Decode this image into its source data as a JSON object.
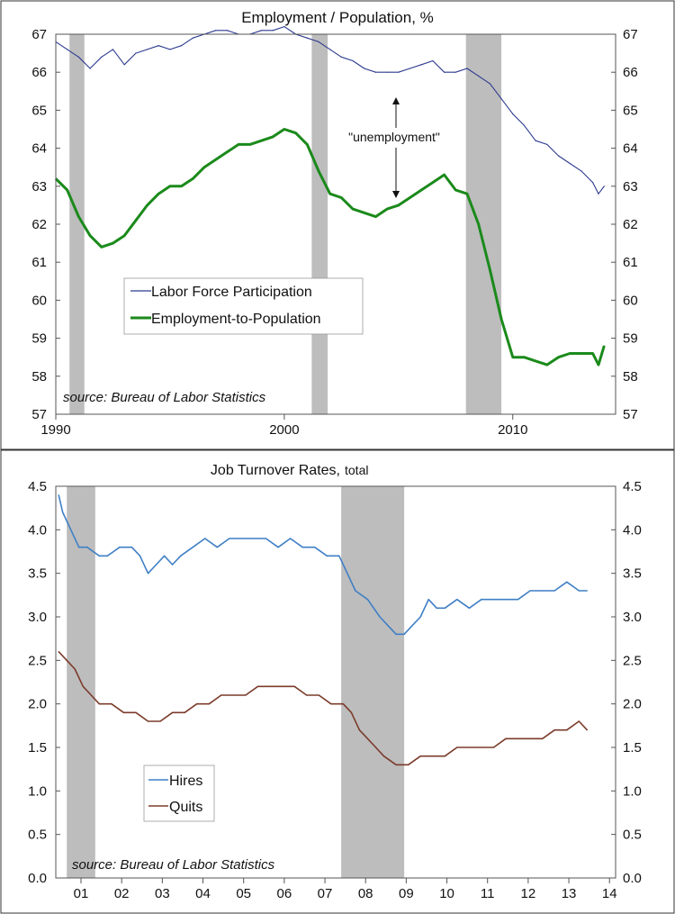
{
  "chart_data": [
    {
      "type": "line",
      "title": "Employment / Population, %",
      "source": "source: Bureau of Labor Statistics",
      "annotation": "\"unemployment\"",
      "ylim": [
        57,
        67
      ],
      "y_ticks": [
        57,
        58,
        59,
        60,
        61,
        62,
        63,
        64,
        65,
        66,
        67
      ],
      "xlim": [
        1990,
        2014.5
      ],
      "x_ticks": [
        {
          "value": 1990,
          "label": "1990"
        },
        {
          "value": 2000,
          "label": "2000"
        },
        {
          "value": 2010,
          "label": "2010"
        }
      ],
      "recessions": [
        [
          1990.6,
          1991.25
        ],
        [
          2001.2,
          2001.9
        ],
        [
          2007.95,
          2009.5
        ]
      ],
      "grid": false,
      "legend_position": "center-left",
      "series": [
        {
          "name": "Labor Force Participation",
          "color": "#2b3a8f",
          "x": [
            1990,
            1990.5,
            1991,
            1991.5,
            1992,
            1992.5,
            1993,
            1993.5,
            1994,
            1994.5,
            1995,
            1995.5,
            1996,
            1996.5,
            1997,
            1997.5,
            1998,
            1998.5,
            1999,
            1999.5,
            2000,
            2000.5,
            2001,
            2001.5,
            2002,
            2002.5,
            2003,
            2003.5,
            2004,
            2004.5,
            2005,
            2005.5,
            2006,
            2006.5,
            2007,
            2007.5,
            2008,
            2008.5,
            2009,
            2009.5,
            2010,
            2010.5,
            2011,
            2011.5,
            2012,
            2012.5,
            2013,
            2013.5,
            2013.75,
            2014.0
          ],
          "y": [
            66.8,
            66.6,
            66.4,
            66.1,
            66.4,
            66.6,
            66.2,
            66.5,
            66.6,
            66.7,
            66.6,
            66.7,
            66.9,
            67.0,
            67.1,
            67.1,
            67.0,
            67.0,
            67.1,
            67.1,
            67.2,
            67.0,
            66.9,
            66.8,
            66.6,
            66.4,
            66.3,
            66.1,
            66.0,
            66.0,
            66.0,
            66.1,
            66.2,
            66.3,
            66.0,
            66.0,
            66.1,
            65.9,
            65.7,
            65.3,
            64.9,
            64.6,
            64.2,
            64.1,
            63.8,
            63.6,
            63.4,
            63.1,
            62.8,
            63.0
          ]
        },
        {
          "name": "Employment-to-Population",
          "color": "#1b8a1b",
          "x": [
            1990,
            1990.5,
            1991,
            1991.5,
            1992,
            1992.5,
            1993,
            1993.5,
            1994,
            1994.5,
            1995,
            1995.5,
            1996,
            1996.5,
            1997,
            1997.5,
            1998,
            1998.5,
            1999,
            1999.5,
            2000,
            2000.5,
            2001,
            2001.5,
            2002,
            2002.5,
            2003,
            2003.5,
            2004,
            2004.5,
            2005,
            2005.5,
            2006,
            2006.5,
            2007,
            2007.5,
            2008,
            2008.5,
            2009,
            2009.5,
            2010,
            2010.5,
            2011,
            2011.5,
            2012,
            2012.5,
            2013,
            2013.5,
            2013.75,
            2014.0
          ],
          "y": [
            63.2,
            62.9,
            62.2,
            61.7,
            61.4,
            61.5,
            61.7,
            62.1,
            62.5,
            62.8,
            63.0,
            63.0,
            63.2,
            63.5,
            63.7,
            63.9,
            64.1,
            64.1,
            64.2,
            64.3,
            64.5,
            64.4,
            64.1,
            63.4,
            62.8,
            62.7,
            62.4,
            62.3,
            62.2,
            62.4,
            62.5,
            62.7,
            62.9,
            63.1,
            63.3,
            62.9,
            62.8,
            62.0,
            60.8,
            59.5,
            58.5,
            58.5,
            58.4,
            58.3,
            58.5,
            58.6,
            58.6,
            58.6,
            58.3,
            58.8
          ]
        }
      ]
    },
    {
      "type": "line",
      "title": "Job Turnover Rates,",
      "title_suffix": "total",
      "source": "source: Bureau of Labor Statistics",
      "ylim": [
        0,
        4.5
      ],
      "y_ticks": [
        {
          "value": 0,
          "label": "0.0"
        },
        {
          "value": 0.5,
          "label": "0.5"
        },
        {
          "value": 1,
          "label": "1.0"
        },
        {
          "value": 1.5,
          "label": "1.5"
        },
        {
          "value": 2,
          "label": "2.0"
        },
        {
          "value": 2.5,
          "label": "2.5"
        },
        {
          "value": 3,
          "label": "3.0"
        },
        {
          "value": 3.5,
          "label": "3.5"
        },
        {
          "value": 4,
          "label": "4.0"
        },
        {
          "value": 4.5,
          "label": "4.5"
        }
      ],
      "xlim": [
        2000.93,
        2014.7
      ],
      "x_ticks": [
        {
          "value": 2001.55,
          "label": "01"
        },
        {
          "value": 2002.55,
          "label": "02"
        },
        {
          "value": 2003.55,
          "label": "03"
        },
        {
          "value": 2004.55,
          "label": "04"
        },
        {
          "value": 2005.55,
          "label": "05"
        },
        {
          "value": 2006.55,
          "label": "06"
        },
        {
          "value": 2007.55,
          "label": "07"
        },
        {
          "value": 2008.55,
          "label": "08"
        },
        {
          "value": 2009.55,
          "label": "09"
        },
        {
          "value": 2010.55,
          "label": "10"
        },
        {
          "value": 2011.55,
          "label": "11"
        },
        {
          "value": 2012.55,
          "label": "12"
        },
        {
          "value": 2013.55,
          "label": "13"
        },
        {
          "value": 2014.55,
          "label": "14"
        }
      ],
      "recessions": [
        [
          2001.2,
          2001.9
        ],
        [
          2007.95,
          2009.5
        ]
      ],
      "grid": false,
      "legend_position": "bottom-left",
      "series": [
        {
          "name": "Hires",
          "color": "#3f7fc5",
          "x": [
            2001.0,
            2001.1,
            2001.3,
            2001.5,
            2001.7,
            2002.0,
            2002.2,
            2002.5,
            2002.8,
            2003.0,
            2003.2,
            2003.4,
            2003.6,
            2003.8,
            2004.0,
            2004.3,
            2004.6,
            2004.9,
            2005.2,
            2005.5,
            2005.8,
            2006.1,
            2006.4,
            2006.7,
            2007.0,
            2007.3,
            2007.6,
            2007.9,
            2008.1,
            2008.3,
            2008.6,
            2008.9,
            2009.1,
            2009.3,
            2009.5,
            2009.7,
            2009.9,
            2010.1,
            2010.3,
            2010.5,
            2010.8,
            2011.1,
            2011.4,
            2011.7,
            2012.0,
            2012.3,
            2012.6,
            2012.9,
            2013.2,
            2013.5,
            2013.8,
            2014.0
          ],
          "y": [
            4.4,
            4.2,
            4.0,
            3.8,
            3.8,
            3.7,
            3.7,
            3.8,
            3.8,
            3.7,
            3.5,
            3.6,
            3.7,
            3.6,
            3.7,
            3.8,
            3.9,
            3.8,
            3.9,
            3.9,
            3.9,
            3.9,
            3.8,
            3.9,
            3.8,
            3.8,
            3.7,
            3.7,
            3.5,
            3.3,
            3.2,
            3.0,
            2.9,
            2.8,
            2.8,
            2.9,
            3.0,
            3.2,
            3.1,
            3.1,
            3.2,
            3.1,
            3.2,
            3.2,
            3.2,
            3.2,
            3.3,
            3.3,
            3.3,
            3.4,
            3.3,
            3.3
          ]
        },
        {
          "name": "Quits",
          "color": "#7b3b2b",
          "x": [
            2001.0,
            2001.2,
            2001.4,
            2001.6,
            2001.8,
            2002.0,
            2002.3,
            2002.6,
            2002.9,
            2003.2,
            2003.5,
            2003.8,
            2004.1,
            2004.4,
            2004.7,
            2005.0,
            2005.3,
            2005.6,
            2005.9,
            2006.2,
            2006.5,
            2006.8,
            2007.1,
            2007.4,
            2007.7,
            2008.0,
            2008.2,
            2008.4,
            2008.6,
            2008.8,
            2009.0,
            2009.3,
            2009.6,
            2009.9,
            2010.2,
            2010.5,
            2010.8,
            2011.1,
            2011.4,
            2011.7,
            2012.0,
            2012.3,
            2012.6,
            2012.9,
            2013.2,
            2013.5,
            2013.8,
            2014.0
          ],
          "y": [
            2.6,
            2.5,
            2.4,
            2.2,
            2.1,
            2.0,
            2.0,
            1.9,
            1.9,
            1.8,
            1.8,
            1.9,
            1.9,
            2.0,
            2.0,
            2.1,
            2.1,
            2.1,
            2.2,
            2.2,
            2.2,
            2.2,
            2.1,
            2.1,
            2.0,
            2.0,
            1.9,
            1.7,
            1.6,
            1.5,
            1.4,
            1.3,
            1.3,
            1.4,
            1.4,
            1.4,
            1.5,
            1.5,
            1.5,
            1.5,
            1.6,
            1.6,
            1.6,
            1.6,
            1.7,
            1.7,
            1.8,
            1.7
          ]
        }
      ]
    }
  ]
}
